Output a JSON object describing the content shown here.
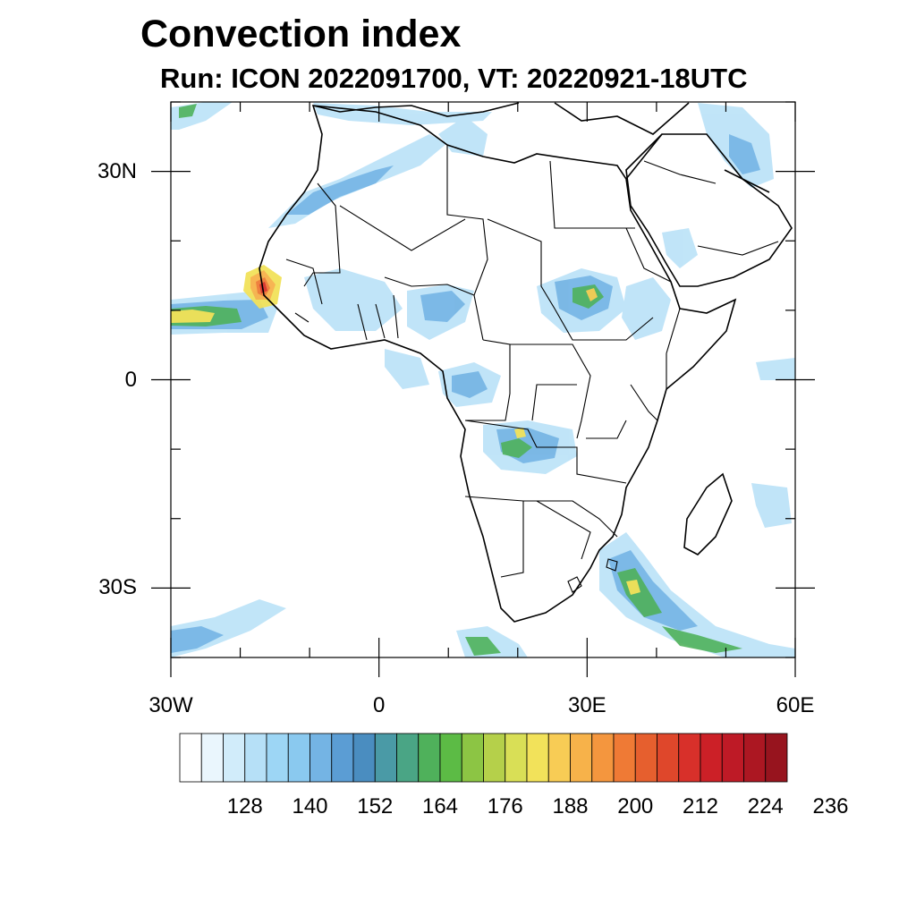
{
  "title": "Convection index",
  "subtitle": "Run: ICON 2022091700,  VT: 20220921-18UTC",
  "axes": {
    "lat_ticks": [
      {
        "lat": 30,
        "label": "30N"
      },
      {
        "lat": 0,
        "label": "0"
      },
      {
        "lat": -30,
        "label": "30S"
      }
    ],
    "lon_ticks": [
      {
        "lon": -30,
        "label": "30W"
      },
      {
        "lon": 0,
        "label": "0"
      },
      {
        "lon": 30,
        "label": "30E"
      },
      {
        "lon": 60,
        "label": "60E"
      }
    ],
    "lat_range": [
      -40,
      40
    ],
    "lon_range": [
      -30,
      60
    ]
  },
  "colorbar": {
    "colors": [
      "#ffffff",
      "#eaf6fd",
      "#d1ecfa",
      "#b6e0f7",
      "#9dd6f5",
      "#8ac9ef",
      "#74b4e4",
      "#5b9dd4",
      "#4a8dc0",
      "#4a9aa6",
      "#4aa585",
      "#4fb15b",
      "#5cbb45",
      "#8cc544",
      "#b5d04a",
      "#d9df56",
      "#f2e25a",
      "#f8cc55",
      "#f7b24a",
      "#f4963e",
      "#ef7a35",
      "#e65f2e",
      "#df472b",
      "#d8302a",
      "#cc2027",
      "#be1a26",
      "#ac1722",
      "#97141e"
    ],
    "labels": [
      "128",
      "140",
      "152",
      "164",
      "176",
      "188",
      "200",
      "212",
      "224",
      "236"
    ]
  }
}
